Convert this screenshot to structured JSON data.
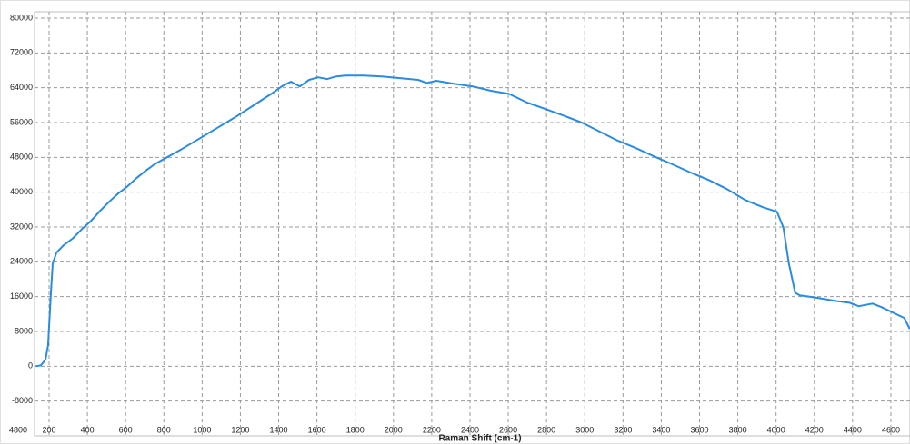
{
  "chart_data": {
    "type": "line",
    "x_label": "Raman Shift (cm-1)",
    "corner_label": "4800",
    "xlim": [
      124,
      4700
    ],
    "ylim": [
      -16000,
      80000
    ],
    "xticks": [
      200,
      400,
      600,
      800,
      1000,
      1200,
      1400,
      1600,
      1800,
      2000,
      2200,
      2400,
      2600,
      2800,
      3000,
      3200,
      3400,
      3600,
      3800,
      4000,
      4200,
      4400,
      4600
    ],
    "yticks": [
      -8000,
      0,
      8000,
      16000,
      24000,
      32000,
      40000,
      48000,
      56000,
      64000,
      72000,
      80000
    ],
    "grid": true,
    "x": [
      130,
      157,
      181,
      195,
      210,
      219,
      238,
      276,
      324,
      371,
      419,
      466,
      514,
      561,
      609,
      656,
      704,
      751,
      799,
      894,
      989,
      1084,
      1179,
      1274,
      1369,
      1416,
      1464,
      1511,
      1559,
      1606,
      1654,
      1701,
      1749,
      1844,
      1939,
      2034,
      2129,
      2176,
      2224,
      2319,
      2414,
      2509,
      2604,
      2699,
      2794,
      2889,
      2984,
      3079,
      3174,
      3269,
      3364,
      3459,
      3554,
      3649,
      3744,
      3839,
      3934,
      4005,
      4038,
      4067,
      4100,
      4124,
      4219,
      4314,
      4385,
      4432,
      4504,
      4551,
      4622,
      4670,
      4698
    ],
    "series": [
      {
        "color": "#2a8be0",
        "values": [
          0,
          200,
          1500,
          4800,
          17300,
          23600,
          26100,
          27800,
          29400,
          31500,
          33400,
          35700,
          37800,
          39700,
          41300,
          43200,
          44900,
          46400,
          47600,
          49900,
          52400,
          54900,
          57400,
          60100,
          62800,
          64300,
          65400,
          64300,
          65800,
          66400,
          66000,
          66600,
          66800,
          66800,
          66600,
          66200,
          65800,
          65100,
          65600,
          64900,
          64300,
          63300,
          62600,
          60600,
          59100,
          57600,
          56000,
          53900,
          51800,
          50100,
          48200,
          46400,
          44500,
          42800,
          40700,
          38200,
          36500,
          35500,
          31900,
          23600,
          16900,
          16300,
          15700,
          15000,
          14600,
          13800,
          14400,
          13600,
          12100,
          11100,
          8600
        ]
      }
    ]
  }
}
